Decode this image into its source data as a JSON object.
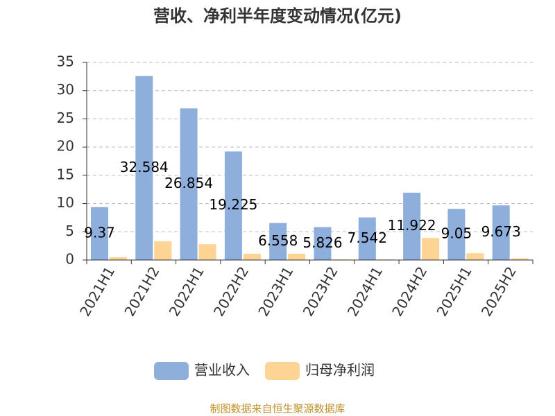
{
  "chart_data": {
    "type": "bar",
    "title": "营收、净利半年度变动情况(亿元)",
    "categories": [
      "2021H1",
      "2021H2",
      "2022H1",
      "2022H2",
      "2023H1",
      "2023H2",
      "2024H1",
      "2024H2",
      "2025H1",
      "2025H2"
    ],
    "series": [
      {
        "name": "营业收入",
        "color": "#8eaedc",
        "values": [
          9.37,
          32.584,
          26.854,
          19.225,
          6.558,
          5.826,
          7.542,
          11.922,
          9.05,
          9.673
        ]
      },
      {
        "name": "归母净利润",
        "color": "#fdd493",
        "values": [
          0.5,
          3.3,
          2.8,
          1.1,
          1.1,
          0.1,
          0.1,
          3.9,
          1.2,
          0.3
        ]
      }
    ],
    "ylim": [
      0,
      35
    ],
    "yticks": [
      0,
      5,
      10,
      15,
      20,
      25,
      30,
      35
    ],
    "grid": true,
    "source": "制图数据来自恒生聚源数据库"
  }
}
